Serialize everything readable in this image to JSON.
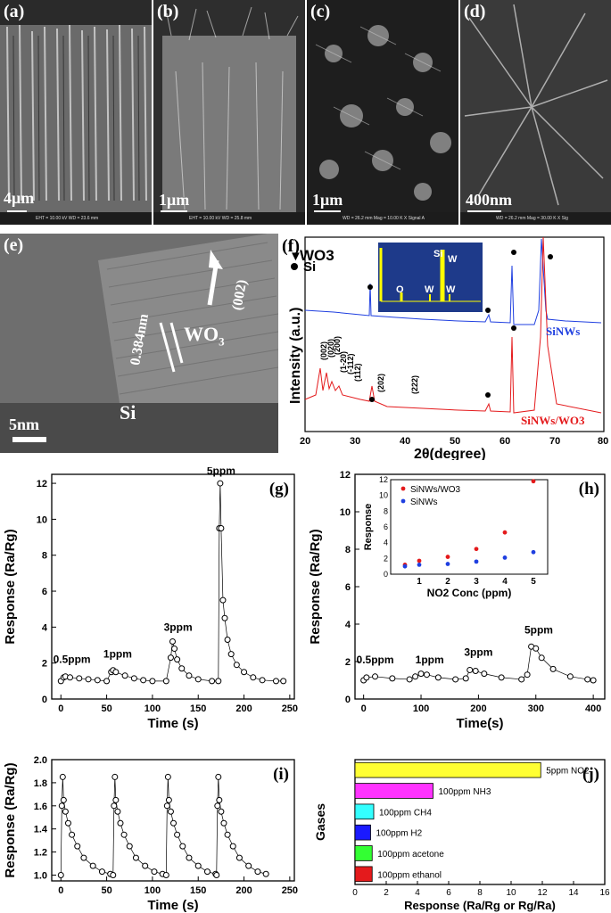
{
  "sem": {
    "a": {
      "label": "(a)",
      "scale": "4μm",
      "info": "EHT = 10.00 kV   WD = 23.6 mm"
    },
    "b": {
      "label": "(b)",
      "scale": "1μm",
      "info": "EHT = 10.00 kV   WD = 25.8 mm"
    },
    "c": {
      "label": "(c)",
      "scale": "1μm",
      "info": "WD = 26.2 mm   Mag = 10.00 K X  Signal A"
    },
    "d": {
      "label": "(d)",
      "scale": "400nm",
      "info": "WD = 26.2 mm   Mag = 30.00 K X  Sig"
    }
  },
  "tem": {
    "label": "(e)",
    "scale": "5nm",
    "lattice": "0.384nm",
    "plane": "(002)",
    "wo3": "WO",
    "wo3_sub": "3",
    "si": "Si"
  },
  "xrd": {
    "label": "(f)",
    "legend_wo3": "WO3",
    "legend_si": "Si",
    "ylabel": "Intensity (a.u.)",
    "xlabel": "2θ(degree)",
    "xticks": [
      "20",
      "30",
      "40",
      "50",
      "60",
      "70",
      "80"
    ],
    "curve1": "SiNWs",
    "curve2": "SiNWs/WO3",
    "peaks": [
      "(002)",
      "(020)",
      "(200)",
      "(1-20)",
      "(-112)",
      "(112)",
      "(202)",
      "(222)"
    ],
    "eds": [
      "O",
      "W",
      "Si",
      "W",
      "W"
    ]
  },
  "colors": {
    "red": "#e41a1c",
    "blue": "#1f3fe0",
    "yellow": "#ffff33",
    "magenta": "#ff33ff",
    "cyan": "#33ffff",
    "darkblue": "#1a1aff",
    "green": "#33ff33",
    "eds_bg": "#1e3a8a"
  },
  "chart_data": [
    {
      "panel": "(g)",
      "type": "scatter",
      "xlabel": "Time (s)",
      "ylabel": "Response (Ra/Rg)",
      "xlim": [
        -10,
        255
      ],
      "ylim": [
        0,
        12.5
      ],
      "xticks": [
        0,
        50,
        100,
        150,
        200,
        250
      ],
      "yticks": [
        0,
        2,
        4,
        6,
        8,
        10,
        12
      ],
      "annotations": [
        "0.5ppm",
        "1ppm",
        "3ppm",
        "5ppm"
      ],
      "points": [
        [
          0,
          1.0
        ],
        [
          3,
          1.2
        ],
        [
          5,
          1.25
        ],
        [
          10,
          1.2
        ],
        [
          20,
          1.15
        ],
        [
          30,
          1.1
        ],
        [
          40,
          1.05
        ],
        [
          50,
          1.0
        ],
        [
          55,
          1.5
        ],
        [
          57,
          1.6
        ],
        [
          60,
          1.5
        ],
        [
          70,
          1.3
        ],
        [
          80,
          1.15
        ],
        [
          90,
          1.05
        ],
        [
          100,
          1.0
        ],
        [
          115,
          1.0
        ],
        [
          120,
          2.3
        ],
        [
          122,
          3.2
        ],
        [
          124,
          2.8
        ],
        [
          127,
          2.2
        ],
        [
          132,
          1.7
        ],
        [
          140,
          1.3
        ],
        [
          150,
          1.1
        ],
        [
          165,
          1.0
        ],
        [
          172,
          1.0
        ],
        [
          173,
          9.5
        ],
        [
          174,
          12.0
        ],
        [
          175,
          9.5
        ],
        [
          177,
          5.5
        ],
        [
          179,
          4.5
        ],
        [
          182,
          3.3
        ],
        [
          186,
          2.5
        ],
        [
          192,
          1.9
        ],
        [
          200,
          1.5
        ],
        [
          210,
          1.2
        ],
        [
          220,
          1.05
        ],
        [
          235,
          1.0
        ],
        [
          243,
          1.0
        ]
      ]
    },
    {
      "panel": "(h)",
      "type": "scatter",
      "xlabel": "Time(s)",
      "ylabel": "Response (Ra/Rg)",
      "xlim": [
        -15,
        420
      ],
      "ylim": [
        0,
        12
      ],
      "xticks": [
        0,
        100,
        200,
        300,
        400
      ],
      "yticks": [
        0,
        2,
        4,
        6,
        8,
        10,
        12
      ],
      "annotations": [
        "0.5ppm",
        "1ppm",
        "3ppm",
        "5ppm"
      ],
      "points": [
        [
          0,
          1.0
        ],
        [
          5,
          1.15
        ],
        [
          20,
          1.2
        ],
        [
          50,
          1.1
        ],
        [
          80,
          1.05
        ],
        [
          90,
          1.2
        ],
        [
          100,
          1.35
        ],
        [
          110,
          1.3
        ],
        [
          130,
          1.15
        ],
        [
          160,
          1.05
        ],
        [
          178,
          1.1
        ],
        [
          185,
          1.55
        ],
        [
          195,
          1.5
        ],
        [
          210,
          1.35
        ],
        [
          240,
          1.15
        ],
        [
          275,
          1.05
        ],
        [
          285,
          1.3
        ],
        [
          292,
          2.8
        ],
        [
          300,
          2.7
        ],
        [
          310,
          2.2
        ],
        [
          330,
          1.6
        ],
        [
          360,
          1.2
        ],
        [
          390,
          1.05
        ],
        [
          400,
          1.0
        ]
      ],
      "inset": {
        "type": "scatter",
        "xlabel": "NO2 Conc (ppm)",
        "ylabel": "Response",
        "x": [
          0.5,
          1,
          2,
          3,
          4,
          5
        ],
        "xlim": [
          0,
          5.5
        ],
        "ylim": [
          0,
          12
        ],
        "series": [
          {
            "name": "SiNWs/WO3",
            "values": [
              1.2,
              1.7,
              2.2,
              3.2,
              5.3,
              11.8
            ]
          },
          {
            "name": "SiNWs",
            "values": [
              1.0,
              1.2,
              1.3,
              1.6,
              2.1,
              2.8
            ]
          }
        ]
      }
    },
    {
      "panel": "(i)",
      "type": "scatter",
      "xlabel": "Time (s)",
      "ylabel": "Response (Ra/Rg)",
      "xlim": [
        -10,
        255
      ],
      "ylim": [
        0.95,
        2.0
      ],
      "xticks": [
        0,
        50,
        100,
        150,
        200,
        250
      ],
      "yticks": [
        1.0,
        1.2,
        1.4,
        1.6,
        1.8,
        2.0
      ],
      "cycles": [
        0,
        57,
        115,
        170
      ],
      "points": [
        [
          0,
          1.0
        ],
        [
          1,
          1.6
        ],
        [
          2,
          1.85
        ],
        [
          3,
          1.65
        ],
        [
          5,
          1.55
        ],
        [
          8,
          1.45
        ],
        [
          12,
          1.35
        ],
        [
          18,
          1.25
        ],
        [
          25,
          1.15
        ],
        [
          35,
          1.08
        ],
        [
          45,
          1.03
        ],
        [
          54,
          1.01
        ]
      ]
    },
    {
      "panel": "(j)",
      "type": "bar",
      "xlabel": "Response (Ra/Rg or Rg/Ra)",
      "ylabel": "Gases",
      "xlim": [
        0,
        16
      ],
      "xticks": [
        0,
        2,
        4,
        6,
        8,
        10,
        12,
        14,
        16
      ],
      "categories": [
        "100ppm ethanol",
        "100ppm acetone",
        "100ppm H2",
        "100ppm CH4",
        "100ppm NH3",
        "5ppm NO2"
      ],
      "values": [
        1.1,
        1.1,
        1.0,
        1.2,
        5.0,
        11.9
      ]
    }
  ]
}
